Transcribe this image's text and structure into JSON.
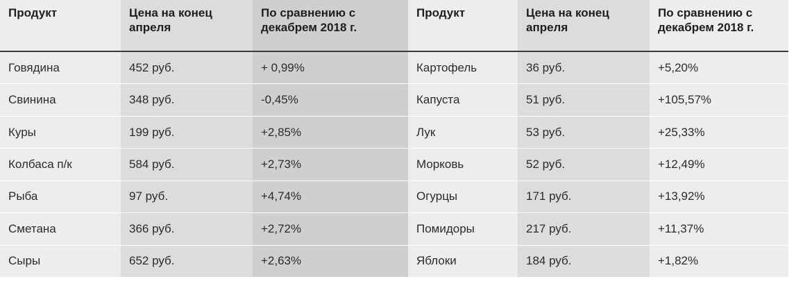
{
  "table": {
    "headers": {
      "product": "Продукт",
      "price_line1": "Цена на конец",
      "price_line2": "апреля",
      "diff_line1": "По сравнению с",
      "diff_line2": "декабрем 2018 г."
    },
    "rows": [
      {
        "left": {
          "product": "Говядина",
          "price": "452 руб.",
          "diff": "+ 0,99%"
        },
        "right": {
          "product": "Картофель",
          "price": "36 руб.",
          "diff": "+5,20%"
        }
      },
      {
        "left": {
          "product": "Свинина",
          "price": "348 руб.",
          "diff": "-0,45%"
        },
        "right": {
          "product": "Капуста",
          "price": "51 руб.",
          "diff": "+105,57%"
        }
      },
      {
        "left": {
          "product": "Куры",
          "price": "199 руб.",
          "diff": "+2,85%"
        },
        "right": {
          "product": "Лук",
          "price": "53 руб.",
          "diff": "+25,33%"
        }
      },
      {
        "left": {
          "product": "Колбаса п/к",
          "price": "584 руб.",
          "diff": "+2,73%"
        },
        "right": {
          "product": "Морковь",
          "price": "52 руб.",
          "diff": "+12,49%"
        }
      },
      {
        "left": {
          "product": "Рыба",
          "price": "97 руб.",
          "diff": "+4,74%"
        },
        "right": {
          "product": "Огурцы",
          "price": "171 руб.",
          "diff": "+13,92%"
        }
      },
      {
        "left": {
          "product": "Сметана",
          "price": "366 руб.",
          "diff": "+2,72%"
        },
        "right": {
          "product": "Помидоры",
          "price": "217 руб.",
          "diff": "+11,37%"
        }
      },
      {
        "left": {
          "product": "Сыры",
          "price": "652 руб.",
          "diff": "+2,63%"
        },
        "right": {
          "product": "Яблоки",
          "price": "184 руб.",
          "diff": "+1,82%"
        }
      }
    ]
  }
}
